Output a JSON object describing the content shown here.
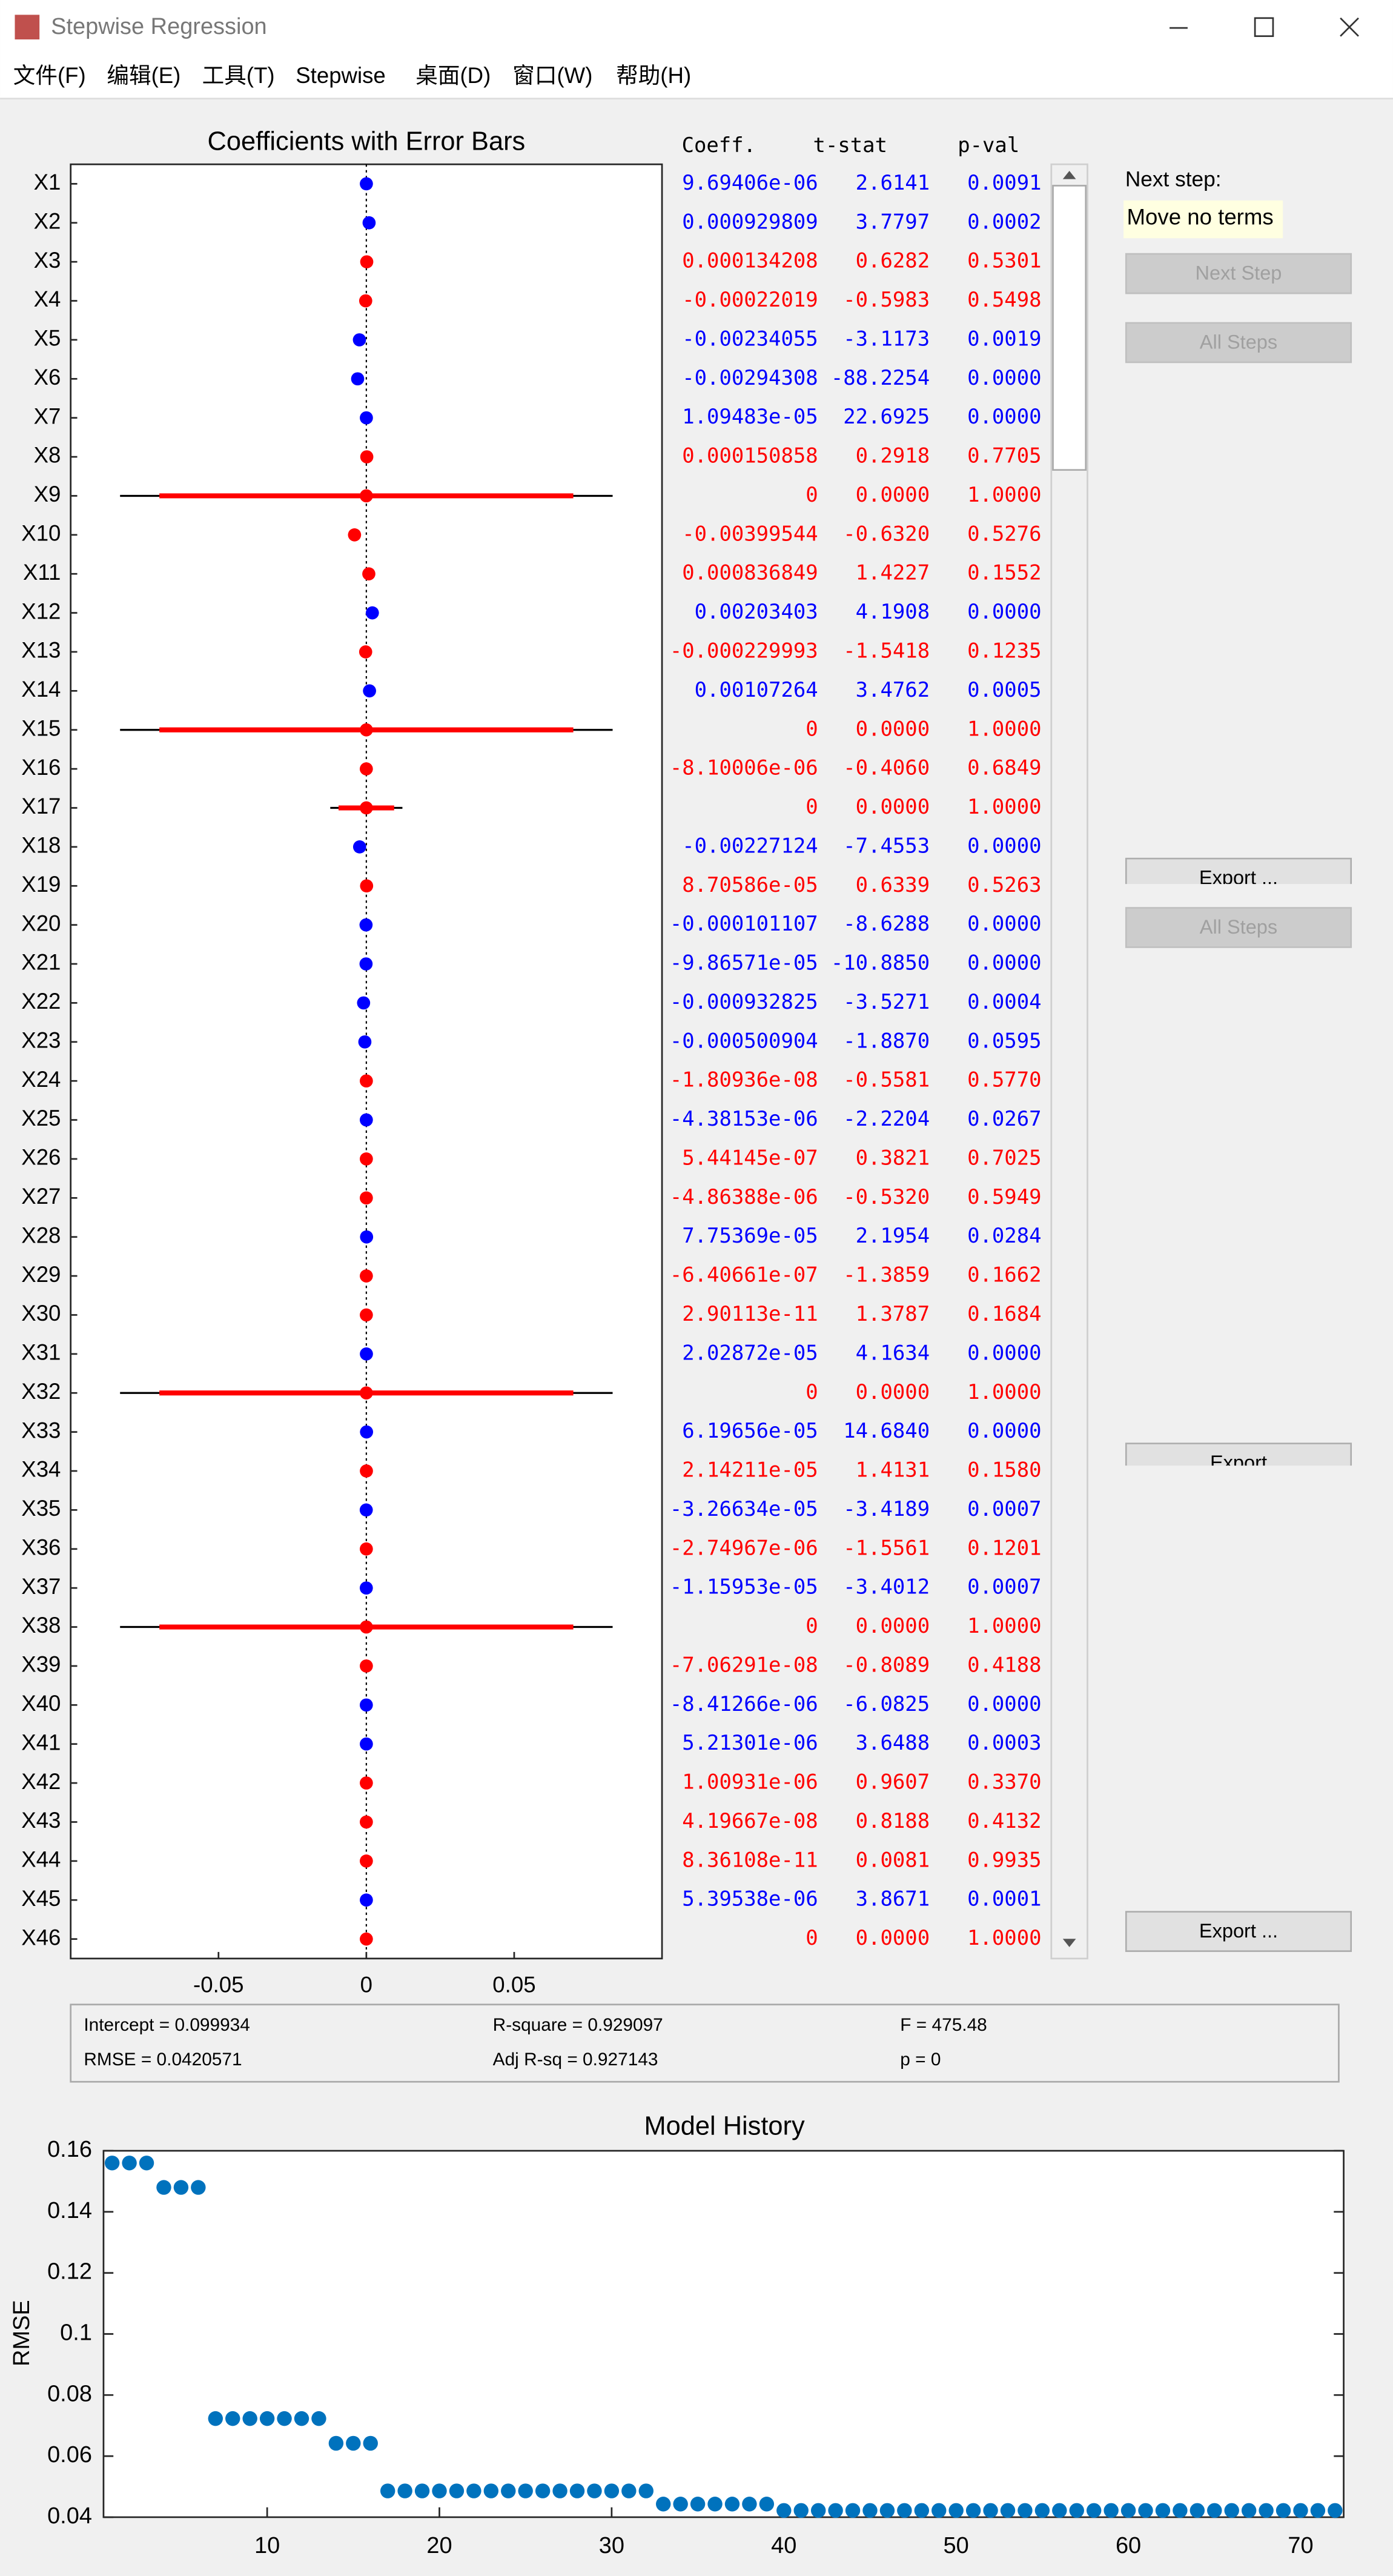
{
  "window": {
    "title": "Stepwise Regression",
    "menu": [
      "文件(F)",
      "编辑(E)",
      "工具(T)",
      "Stepwise",
      "桌面(D)",
      "窗口(W)",
      "帮助(H)"
    ]
  },
  "chart_data": [
    {
      "type": "errorbar",
      "title": "Coefficients with Error Bars",
      "categories": [
        "X1",
        "X2",
        "X3",
        "X4",
        "X5",
        "X6",
        "X7",
        "X8",
        "X9",
        "X10",
        "X11",
        "X12",
        "X13",
        "X14",
        "X15",
        "X16",
        "X17",
        "X18",
        "X19",
        "X20",
        "X21",
        "X22",
        "X23",
        "X24",
        "X25",
        "X26",
        "X27",
        "X28",
        "X29",
        "X30",
        "X31",
        "X32",
        "X33",
        "X34",
        "X35",
        "X36",
        "X37",
        "X38",
        "X39",
        "X40",
        "X41",
        "X42",
        "X43",
        "X44",
        "X45",
        "X46"
      ],
      "values": [
        9.69406e-06,
        0.000929809,
        0.000134208,
        -0.00022019,
        -0.00234055,
        -0.00294308,
        1.09483e-05,
        0.000150858,
        0,
        -0.00399544,
        0.000836849,
        0.00203403,
        -0.000229993,
        0.00107264,
        0,
        -8.10006e-06,
        0,
        -0.00227124,
        8.70586e-05,
        -0.000101107,
        -9.86571e-05,
        -0.000932825,
        -0.000500904,
        -1.80936e-08,
        -4.38153e-06,
        5.44145e-07,
        -4.86388e-06,
        7.75369e-05,
        -6.40661e-07,
        2.90113e-11,
        2.02872e-05,
        0,
        6.19656e-05,
        2.14211e-05,
        -3.26634e-05,
        -2.74967e-06,
        -1.15953e-05,
        0,
        -7.06291e-08,
        -8.41266e-06,
        5.21301e-06,
        1.00931e-06,
        4.19667e-08,
        8.36108e-11,
        5.39538e-06,
        0
      ],
      "value_labels": [
        "9.69406e-06",
        "0.000929809",
        "0.000134208",
        "-0.00022019",
        "-0.00234055",
        "-0.00294308",
        "1.09483e-05",
        "0.000150858",
        "0",
        "-0.00399544",
        "0.000836849",
        "0.00203403",
        "-0.000229993",
        "0.00107264",
        "0",
        "-8.10006e-06",
        "0",
        "-0.00227124",
        "8.70586e-05",
        "-0.000101107",
        "-9.86571e-05",
        "-0.000932825",
        "-0.000500904",
        "-1.80936e-08",
        "-4.38153e-06",
        "5.44145e-07",
        "-4.86388e-06",
        "7.75369e-05",
        "-6.40661e-07",
        "2.90113e-11",
        "2.02872e-05",
        "0",
        "6.19656e-05",
        "2.14211e-05",
        "-3.26634e-05",
        "-2.74967e-06",
        "-1.15953e-05",
        "0",
        "-7.06291e-08",
        "-8.41266e-06",
        "5.21301e-06",
        "1.00931e-06",
        "4.19667e-08",
        "8.36108e-11",
        "5.39538e-06",
        "0"
      ],
      "in_model": [
        true,
        true,
        false,
        false,
        true,
        true,
        true,
        false,
        false,
        false,
        false,
        true,
        false,
        true,
        false,
        false,
        false,
        true,
        false,
        true,
        true,
        true,
        true,
        false,
        true,
        false,
        false,
        true,
        false,
        false,
        true,
        false,
        true,
        false,
        true,
        false,
        true,
        false,
        false,
        true,
        true,
        false,
        false,
        false,
        true,
        false
      ],
      "error_outer": [
        null,
        null,
        null,
        null,
        null,
        null,
        null,
        null,
        0.0833,
        null,
        null,
        null,
        null,
        null,
        0.0833,
        null,
        0.0122,
        null,
        null,
        null,
        null,
        null,
        null,
        null,
        null,
        null,
        null,
        null,
        null,
        null,
        null,
        0.0833,
        null,
        null,
        null,
        null,
        null,
        0.0833,
        null,
        null,
        null,
        null,
        null,
        null,
        null,
        null
      ],
      "error_inner": [
        null,
        null,
        null,
        null,
        null,
        null,
        null,
        null,
        0.07,
        null,
        null,
        null,
        null,
        null,
        0.07,
        null,
        0.0094,
        null,
        null,
        null,
        null,
        null,
        null,
        null,
        null,
        null,
        null,
        null,
        null,
        null,
        null,
        0.07,
        null,
        null,
        null,
        null,
        null,
        0.07,
        null,
        null,
        null,
        null,
        null,
        null,
        null,
        null
      ],
      "color_in": "#0000ff",
      "color_out": "#ff0000",
      "color_outer_bar": "#000000",
      "color_inner_bar": "#ff0000",
      "xlim": [
        -0.1,
        0.1
      ],
      "xticks": [
        -0.05,
        0,
        0.05
      ]
    },
    {
      "type": "scatter",
      "title": "Model History",
      "y_label": "RMSE",
      "x": [
        1,
        2,
        3,
        4,
        5,
        6,
        7,
        8,
        9,
        10,
        11,
        12,
        13,
        14,
        15,
        16,
        17,
        18,
        19,
        20,
        21,
        22,
        23,
        24,
        25,
        26,
        27,
        28,
        29,
        30,
        31,
        32,
        33,
        34,
        35,
        36,
        37,
        38,
        39,
        40,
        41,
        42,
        43,
        44,
        45,
        46,
        47,
        48,
        49,
        50,
        51,
        52,
        53,
        54,
        55,
        56,
        57,
        58,
        59,
        60,
        61,
        62,
        63,
        64,
        65,
        66,
        67,
        68,
        69,
        70,
        71,
        72
      ],
      "values": [
        0.156,
        0.156,
        0.156,
        0.148,
        0.148,
        0.148,
        0.0723,
        0.0723,
        0.0723,
        0.0723,
        0.0723,
        0.0723,
        0.0723,
        0.0642,
        0.0642,
        0.0642,
        0.0486,
        0.0486,
        0.0486,
        0.0486,
        0.0486,
        0.0486,
        0.0486,
        0.0486,
        0.0486,
        0.0486,
        0.0486,
        0.0486,
        0.0486,
        0.0486,
        0.0486,
        0.0486,
        0.0443,
        0.0443,
        0.0443,
        0.0443,
        0.0443,
        0.0443,
        0.0443,
        0.0422,
        0.0422,
        0.0422,
        0.0422,
        0.0422,
        0.0422,
        0.0422,
        0.0422,
        0.0422,
        0.0422,
        0.0422,
        0.0422,
        0.0422,
        0.0422,
        0.0422,
        0.0422,
        0.0422,
        0.0422,
        0.0422,
        0.0422,
        0.0422,
        0.0422,
        0.0422,
        0.0422,
        0.0422,
        0.0422,
        0.0422,
        0.0422,
        0.0422,
        0.0422,
        0.0422,
        0.0422,
        0.0422
      ],
      "color": "#0072bd",
      "xlim": [
        0.5,
        72.5
      ],
      "ylim": [
        0.04,
        0.16
      ],
      "xticks": [
        10,
        20,
        30,
        40,
        50,
        60,
        70
      ],
      "yticks": [
        0.04,
        0.06,
        0.08,
        0.1,
        0.12,
        0.14,
        0.16
      ]
    }
  ],
  "table": {
    "headers": [
      "Coeff.",
      "t-stat",
      "p-val"
    ],
    "t_stat": [
      "2.6141",
      "3.7797",
      "0.6282",
      "-0.5983",
      "-3.1173",
      "-88.2254",
      "22.6925",
      "0.2918",
      "0.0000",
      "-0.6320",
      "1.4227",
      "4.1908",
      "-1.5418",
      "3.4762",
      "0.0000",
      "-0.4060",
      "0.0000",
      "-7.4553",
      "0.6339",
      "-8.6288",
      "-10.8850",
      "-3.5271",
      "-1.8870",
      "-0.5581",
      "-2.2204",
      "0.3821",
      "-0.5320",
      "2.1954",
      "-1.3859",
      "1.3787",
      "4.1634",
      "0.0000",
      "14.6840",
      "1.4131",
      "-3.4189",
      "-1.5561",
      "-3.4012",
      "0.0000",
      "-0.8089",
      "-6.0825",
      "3.6488",
      "0.9607",
      "0.8188",
      "0.0081",
      "3.8671",
      "0.0000"
    ],
    "p_val": [
      "0.0091",
      "0.0002",
      "0.5301",
      "0.5498",
      "0.0019",
      "0.0000",
      "0.0000",
      "0.7705",
      "1.0000",
      "0.5276",
      "0.1552",
      "0.0000",
      "0.1235",
      "0.0005",
      "1.0000",
      "0.6849",
      "1.0000",
      "0.0000",
      "0.5263",
      "0.0000",
      "0.0000",
      "0.0004",
      "0.0595",
      "0.5770",
      "0.0267",
      "0.7025",
      "0.5949",
      "0.0284",
      "0.1662",
      "0.1684",
      "0.0000",
      "1.0000",
      "0.0000",
      "0.1580",
      "0.0007",
      "0.1201",
      "0.0007",
      "1.0000",
      "0.4188",
      "0.0000",
      "0.0003",
      "0.3370",
      "0.4132",
      "0.9935",
      "0.0001",
      "1.0000"
    ]
  },
  "side_panel": {
    "next_step_label": "Next step:",
    "next_step_value": "Move no terms",
    "buttons": [
      "Next Step",
      "All Steps",
      "Export ...",
      "All Steps",
      "Export",
      "Export ..."
    ]
  },
  "stats": [
    "Intercept = 0.099934",
    "R-square = 0.929097",
    "F = 475.48",
    "RMSE = 0.0420571",
    "Adj R-sq = 0.927143",
    "p = 0"
  ]
}
